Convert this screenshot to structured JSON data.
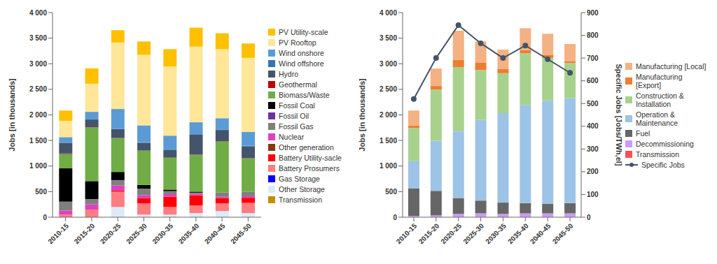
{
  "chart_data": [
    {
      "type": "bar",
      "stacked": true,
      "legend": "right",
      "grid": false,
      "y_label": "Jobs [in thousands]",
      "categories": [
        "2010-15",
        "2015-20",
        "2020-25",
        "2025-30",
        "2030-35",
        "2035-40",
        "2040-45",
        "2045-50"
      ],
      "ylim": [
        0,
        4000
      ],
      "yticks": [
        0,
        500,
        {
          "value": 1000,
          "label": "1 000"
        },
        {
          "value": 1500,
          "label": "1 500"
        },
        {
          "value": 2000,
          "label": "2 000"
        },
        {
          "value": 2500,
          "label": "2 500"
        },
        {
          "value": 3000,
          "label": "3 000"
        },
        {
          "value": 3500,
          "label": "3 500"
        },
        {
          "value": 4000,
          "label": "4 000"
        }
      ],
      "series": [
        {
          "name": "PV Utility-scale",
          "color": "#FFC000",
          "values": [
            200,
            300,
            240,
            260,
            340,
            370,
            310,
            280
          ]
        },
        {
          "name": "PV Rooftop",
          "color": "#FFE699",
          "values": [
            320,
            550,
            1300,
            1380,
            1350,
            1480,
            1350,
            1450
          ]
        },
        {
          "name": "Wind onshore",
          "color": "#5B9BD5",
          "values": [
            110,
            150,
            390,
            330,
            270,
            230,
            220,
            270
          ]
        },
        {
          "name": "Wind offshore",
          "color": "#2E75B6",
          "values": [
            0,
            0,
            5,
            10,
            10,
            10,
            10,
            10
          ]
        },
        {
          "name": "Hydro",
          "color": "#44546A",
          "values": [
            210,
            150,
            170,
            150,
            150,
            390,
            220,
            230
          ]
        },
        {
          "name": "Geothermal",
          "color": "#C00000",
          "values": [
            10,
            5,
            5,
            5,
            5,
            5,
            5,
            5
          ]
        },
        {
          "name": "Biomass/Waste",
          "color": "#70AD47",
          "values": [
            280,
            1050,
            660,
            670,
            620,
            720,
            1000,
            650
          ]
        },
        {
          "name": "Fossil Coal",
          "color": "#000000",
          "values": [
            650,
            350,
            160,
            70,
            30,
            20,
            0,
            0
          ]
        },
        {
          "name": "Fossil Oil",
          "color": "#7030A0",
          "values": [
            5,
            5,
            5,
            0,
            0,
            0,
            0,
            0
          ]
        },
        {
          "name": "Fossil Gas",
          "color": "#7F7F7F",
          "values": [
            170,
            100,
            100,
            130,
            60,
            20,
            80,
            90
          ]
        },
        {
          "name": "Nuclear",
          "color": "#E040C0",
          "values": [
            80,
            100,
            100,
            60,
            50,
            30,
            30,
            30
          ]
        },
        {
          "name": "Other generation",
          "color": "#843C0C",
          "values": [
            0,
            0,
            0,
            0,
            0,
            0,
            0,
            0
          ]
        },
        {
          "name": "Battery Utility-sacle",
          "color": "#FF0000",
          "values": [
            0,
            0,
            20,
            100,
            200,
            200,
            100,
            100
          ]
        },
        {
          "name": "Battery Prosumers",
          "color": "#FF7C80",
          "values": [
            50,
            150,
            300,
            220,
            150,
            150,
            150,
            200
          ]
        },
        {
          "name": "Gas Storage",
          "color": "#0000FF",
          "values": [
            0,
            0,
            0,
            0,
            0,
            0,
            0,
            0
          ]
        },
        {
          "name": "Other Storage",
          "color": "#DDEBF7",
          "values": [
            0,
            0,
            200,
            50,
            50,
            80,
            120,
            80
          ]
        },
        {
          "name": "Transmission",
          "color": "#BF9000",
          "values": [
            0,
            0,
            0,
            0,
            0,
            0,
            0,
            0
          ]
        }
      ]
    },
    {
      "type": "bar",
      "stacked": true,
      "legend": "right",
      "grid": false,
      "y_label": "Jobs [in thousands]",
      "y2_label": "Specific Jobs [Jobs/TWh,el]",
      "categories": [
        "2010-15",
        "2015-20",
        "2020-25",
        "2025-30",
        "2030-35",
        "2035-40",
        "2040-45",
        "2045-50"
      ],
      "ylim": [
        0,
        4000
      ],
      "yticks": [
        0,
        500,
        {
          "value": 1000,
          "label": "1 000"
        },
        {
          "value": 1500,
          "label": "1 500"
        },
        {
          "value": 2000,
          "label": "2 000"
        },
        {
          "value": 2500,
          "label": "2 500"
        },
        {
          "value": 3000,
          "label": "3 000"
        },
        {
          "value": 3500,
          "label": "3 500"
        },
        {
          "value": 4000,
          "label": "4 000"
        }
      ],
      "y2lim": [
        0,
        900
      ],
      "y2ticks": [
        0,
        100,
        200,
        300,
        400,
        500,
        600,
        700,
        800,
        900
      ],
      "series": [
        {
          "name": "Manufacturing [Local]",
          "color": "#F4B183",
          "values": [
            290,
            340,
            570,
            410,
            380,
            430,
            410,
            340
          ]
        },
        {
          "name": "Manufacturing [Export]",
          "color": "#ED7D31",
          "values": [
            50,
            70,
            140,
            150,
            80,
            60,
            60,
            30
          ]
        },
        {
          "name": "Construction & Installation",
          "color": "#A9D18E",
          "values": [
            650,
            1000,
            1260,
            970,
            780,
            1010,
            840,
            690
          ]
        },
        {
          "name": "Operation & Maintenance",
          "color": "#9DC3E6",
          "values": [
            530,
            980,
            1300,
            1580,
            1750,
            1920,
            2010,
            2050
          ]
        },
        {
          "name": "Fuel",
          "color": "#666666",
          "values": [
            540,
            480,
            310,
            250,
            220,
            200,
            190,
            200
          ]
        },
        {
          "name": "Decommissioning",
          "color": "#CC99FF",
          "values": [
            20,
            30,
            60,
            70,
            60,
            70,
            70,
            70
          ]
        },
        {
          "name": "Transmission",
          "color": "#FF5050",
          "values": [
            5,
            5,
            5,
            5,
            5,
            5,
            5,
            5
          ]
        },
        {
          "name": "Specific Jobs",
          "color": "#44546A",
          "type": "line",
          "axis": "y2",
          "marker": "circle",
          "values": [
            520,
            700,
            845,
            765,
            700,
            755,
            695,
            635
          ]
        }
      ]
    }
  ]
}
